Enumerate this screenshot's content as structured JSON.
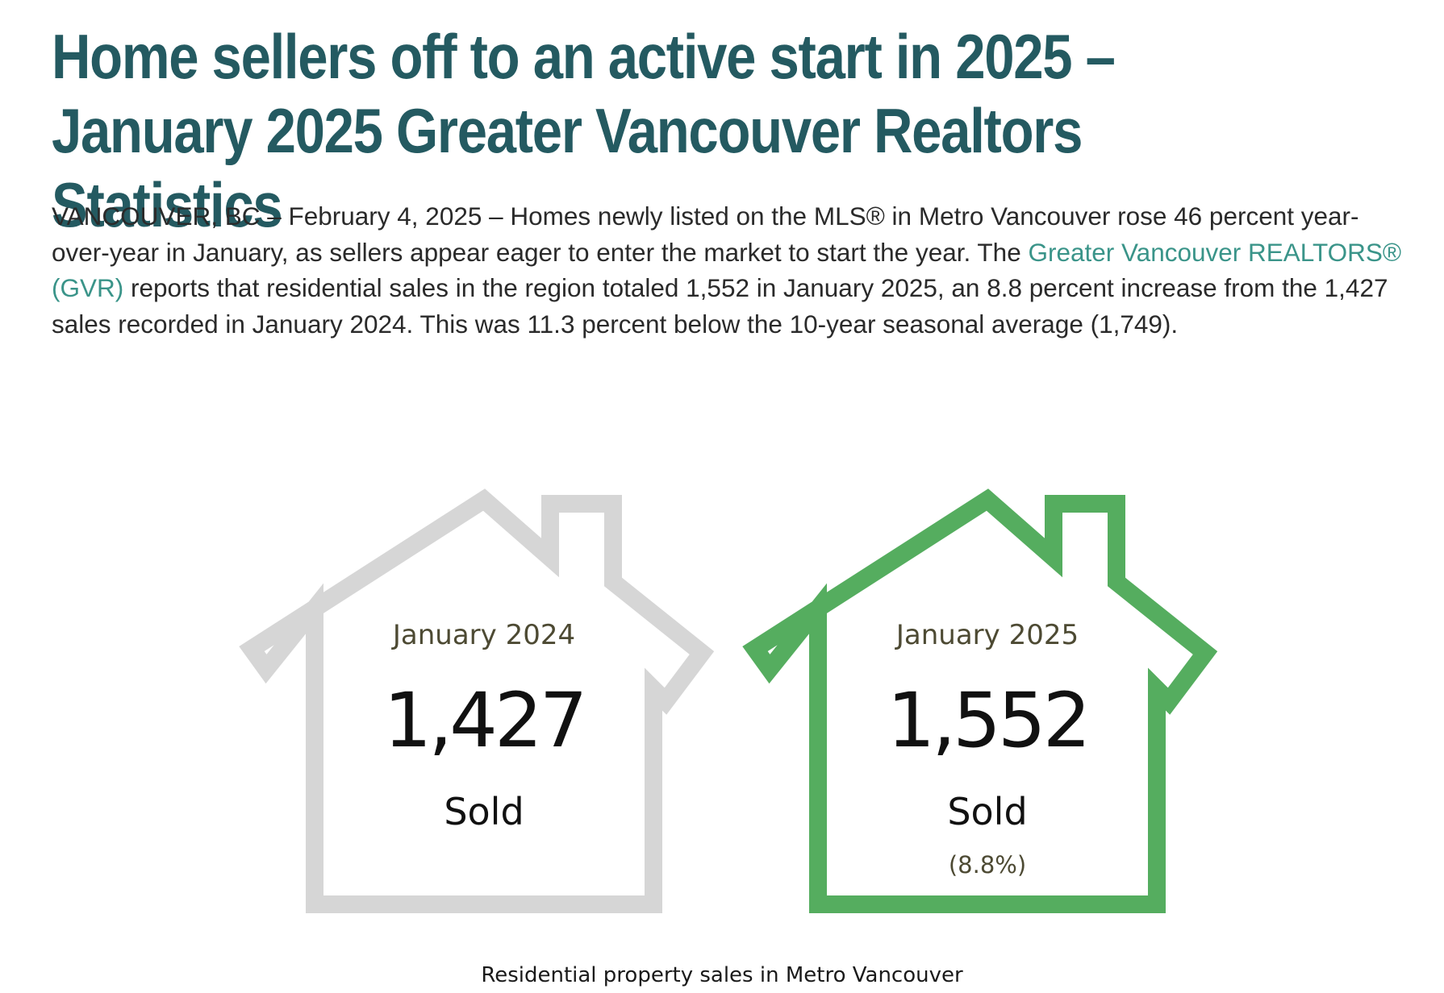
{
  "article": {
    "headline": "Home sellers off to an active start in 2025 – January 2025 Greater Vancouver Realtors Statistics",
    "lede_before_link": "VANCOUVER, BC – February 4, 2025 – Homes newly listed on the MLS® in Metro Vancouver rose 46 percent year-over-year in January, as sellers appear eager to enter the market to start the year. The ",
    "lede_link": "Greater Vancouver REALTORS® (GVR)",
    "lede_after_link": " reports that residential sales in the region totaled 1,552 in January 2025, an 8.8 percent increase from the 1,427 sales recorded in January 2024. This was 11.3 percent below the 10-year seasonal average (1,749)."
  },
  "infographic": {
    "houses": [
      {
        "label": "January 2024",
        "value": "1,427",
        "sub": "Sold",
        "change": "",
        "outline_color": "#d6d6d6"
      },
      {
        "label": "January 2025",
        "value": "1,552",
        "sub": "Sold",
        "change": "(8.8%)",
        "outline_color": "#55ad5f"
      }
    ],
    "caption": "Residential property sales in Metro Vancouver"
  }
}
